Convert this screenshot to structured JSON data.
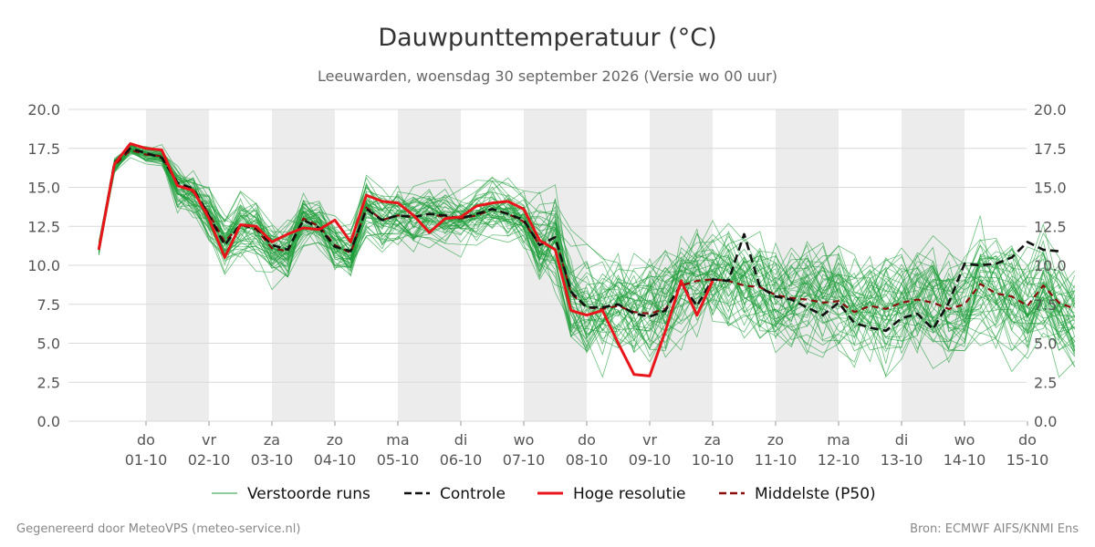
{
  "chart_data": {
    "type": "line",
    "title": "Dauwpunttemperatuur (°C)",
    "subtitle": "Leeuwarden, woensdag 30 september 2026 (Versie wo 00 uur)",
    "x_start_day_index": 0,
    "days": [
      {
        "weekday": "do",
        "date": "01-10"
      },
      {
        "weekday": "vr",
        "date": "02-10"
      },
      {
        "weekday": "za",
        "date": "03-10"
      },
      {
        "weekday": "zo",
        "date": "04-10"
      },
      {
        "weekday": "ma",
        "date": "05-10"
      },
      {
        "weekday": "di",
        "date": "06-10"
      },
      {
        "weekday": "wo",
        "date": "07-10"
      },
      {
        "weekday": "do",
        "date": "08-10"
      },
      {
        "weekday": "vr",
        "date": "09-10"
      },
      {
        "weekday": "za",
        "date": "10-10"
      },
      {
        "weekday": "zo",
        "date": "11-10"
      },
      {
        "weekday": "ma",
        "date": "12-10"
      },
      {
        "weekday": "di",
        "date": "13-10"
      },
      {
        "weekday": "wo",
        "date": "14-10"
      },
      {
        "weekday": "do",
        "date": "15-10"
      }
    ],
    "ylim": [
      0,
      20
    ],
    "yticks": [
      "0.0",
      "2.5",
      "5.0",
      "7.5",
      "10.0",
      "12.5",
      "15.0",
      "17.5",
      "20.0"
    ],
    "weekend_shading": true,
    "grid": true,
    "legend_position": "bottom",
    "series": [
      {
        "name": "Controle",
        "color": "#111111",
        "style": "dashed",
        "values": [
          11.0,
          16.6,
          17.5,
          17.2,
          16.9,
          15.3,
          14.9,
          13.2,
          11.3,
          12.6,
          12.4,
          11.3,
          11.0,
          12.9,
          12.4,
          11.2,
          10.9,
          13.6,
          12.9,
          13.2,
          13.1,
          13.3,
          13.2,
          13.0,
          13.3,
          13.6,
          13.3,
          12.9,
          11.3,
          11.8,
          8.3,
          7.3,
          7.3,
          7.5,
          6.9,
          6.7,
          7.1,
          8.8,
          7.4,
          9.1,
          9.0,
          12.0,
          8.6,
          8.0,
          7.8,
          7.3,
          6.8,
          7.6,
          6.3,
          6.0,
          5.8,
          6.6,
          6.9,
          5.9,
          7.6,
          10.1,
          10.0,
          10.1,
          10.5,
          11.5,
          11.0,
          10.9
        ]
      },
      {
        "name": "Hoge resolutie",
        "color": "#e8161b",
        "style": "solid",
        "values": [
          11.0,
          16.5,
          17.8,
          17.5,
          17.4,
          15.1,
          14.8,
          13.0,
          10.5,
          12.6,
          12.5,
          11.5,
          12.0,
          12.4,
          12.3,
          12.9,
          11.5,
          14.5,
          14.1,
          14.0,
          13.2,
          12.1,
          13.0,
          13.1,
          13.8,
          14.0,
          14.1,
          13.6,
          11.6,
          11.0,
          7.1,
          6.8,
          7.1,
          5.0,
          3.0,
          2.9,
          5.8,
          9.0,
          6.8,
          9.0
        ]
      },
      {
        "name": "Middelste (P50)",
        "color": "#8b0d0d",
        "style": "dashed",
        "values": [
          11.1,
          16.4,
          17.4,
          17.1,
          17.0,
          15.2,
          14.7,
          13.3,
          11.5,
          12.6,
          12.3,
          11.1,
          10.9,
          13.0,
          12.5,
          11.3,
          10.8,
          13.7,
          12.9,
          13.2,
          13.1,
          13.3,
          13.1,
          13.0,
          13.2,
          13.6,
          13.3,
          12.8,
          11.3,
          11.8,
          8.2,
          7.3,
          7.2,
          7.4,
          7.0,
          6.9,
          7.2,
          8.7,
          9.0,
          9.1,
          9.0,
          8.7,
          8.6,
          8.1,
          7.9,
          7.8,
          7.6,
          7.7,
          7.0,
          7.4,
          7.2,
          7.6,
          7.8,
          7.6,
          7.2,
          7.5,
          8.8,
          8.2,
          8.0,
          7.4,
          8.7,
          7.6,
          7.2
        ]
      }
    ],
    "ensemble": {
      "name": "Verstoorde runs",
      "color": "#1f9e3a",
      "member_count": 50
    },
    "legend": [
      {
        "label": "Verstoorde runs",
        "color": "#1f9e3a",
        "style": "thin"
      },
      {
        "label": "Controle",
        "color": "#111111",
        "style": "dashed"
      },
      {
        "label": "Hoge resolutie",
        "color": "#e8161b",
        "style": "solid"
      },
      {
        "label": "Middelste (P50)",
        "color": "#8b0d0d",
        "style": "dashed"
      }
    ]
  },
  "footer": {
    "left": "Gegenereerd door MeteoVPS (meteo-service.nl)",
    "right": "Bron: ECMWF AIFS/KNMI Ens"
  }
}
